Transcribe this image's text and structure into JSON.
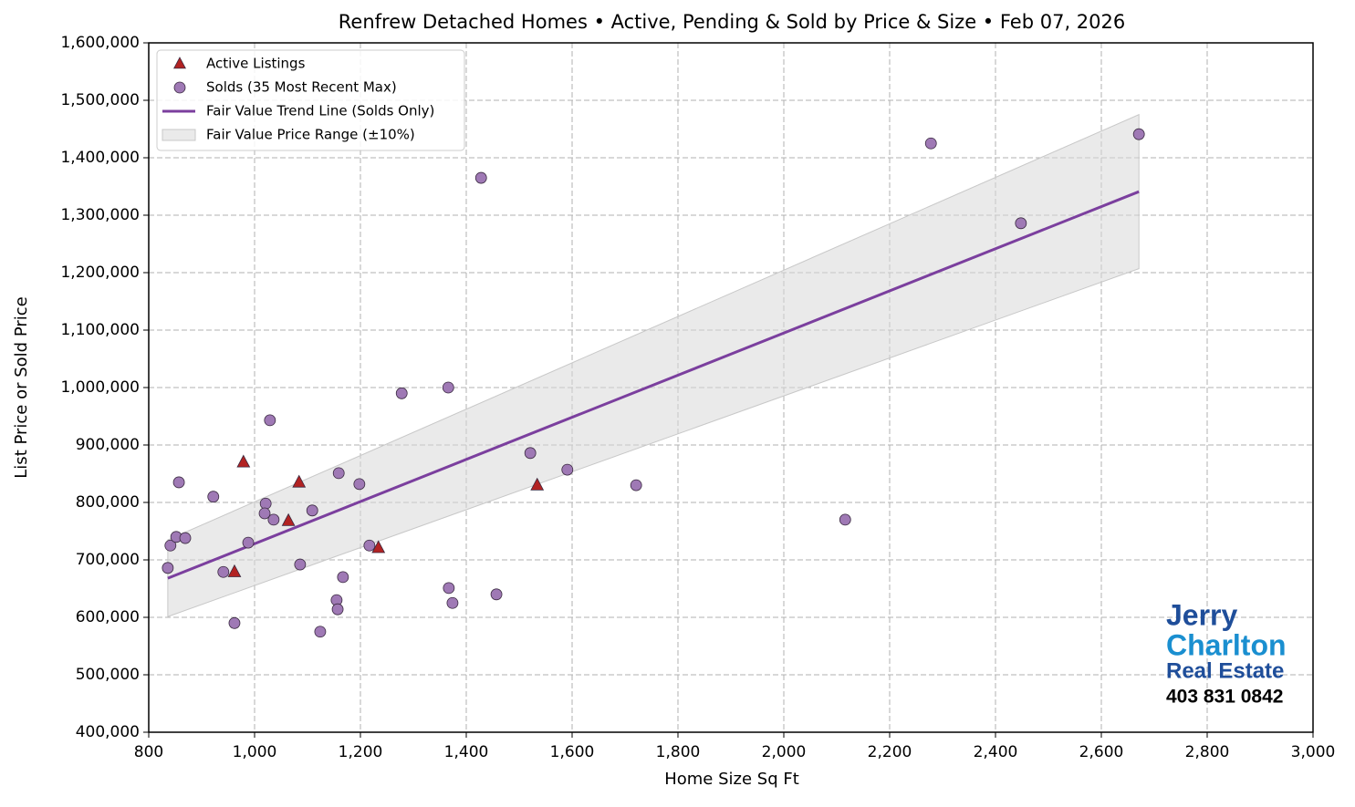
{
  "chart_data": {
    "type": "scatter",
    "title": "Renfrew Detached Homes • Active, Pending & Sold by Price & Size • Feb 07, 2026",
    "x_label": "Home Size Sq Ft",
    "y_label": "List Price or Sold Price",
    "xlim": [
      800,
      3000
    ],
    "ylim": [
      400000,
      1600000
    ],
    "xticks": [
      800,
      {
        "value": 1000,
        "label": "1,000"
      },
      {
        "value": 1200,
        "label": "1,200"
      },
      {
        "value": 1400,
        "label": "1,400"
      },
      {
        "value": 1600,
        "label": "1,600"
      },
      {
        "value": 1800,
        "label": "1,800"
      },
      {
        "value": 2000,
        "label": "2,000"
      },
      {
        "value": 2200,
        "label": "2,200"
      },
      {
        "value": 2400,
        "label": "2,400"
      },
      {
        "value": 2600,
        "label": "2,600"
      },
      {
        "value": 2800,
        "label": "2,800"
      },
      {
        "value": 3000,
        "label": "3,000"
      }
    ],
    "yticks": [
      {
        "value": 400000,
        "label": "400,000"
      },
      {
        "value": 500000,
        "label": "500,000"
      },
      {
        "value": 600000,
        "label": "600,000"
      },
      {
        "value": 700000,
        "label": "700,000"
      },
      {
        "value": 800000,
        "label": "800,000"
      },
      {
        "value": 900000,
        "label": "900,000"
      },
      {
        "value": 1000000,
        "label": "1,000,000"
      },
      {
        "value": 1100000,
        "label": "1,100,000"
      },
      {
        "value": 1200000,
        "label": "1,200,000"
      },
      {
        "value": 1300000,
        "label": "1,300,000"
      },
      {
        "value": 1400000,
        "label": "1,400,000"
      },
      {
        "value": 1500000,
        "label": "1,500,000"
      },
      {
        "value": 1600000,
        "label": "1,600,000"
      }
    ],
    "grid": true,
    "legend": "upper left",
    "series": [
      {
        "name": "Active Listings",
        "kind": "points",
        "marker": "triangle",
        "color": "#b22222",
        "x": [
          979,
          1084,
          1064,
          962,
          1234,
          1534
        ],
        "values": [
          870000,
          835000,
          768000,
          679000,
          721000,
          830000
        ]
      },
      {
        "name": "Solds (35 Most Recent Max)",
        "kind": "points",
        "marker": "circle",
        "color": "#9f79b5",
        "x": [
          836,
          841,
          852,
          857,
          869,
          922,
          941,
          962,
          988,
          1021,
          1019,
          1029,
          1036,
          1086,
          1109,
          1124,
          1155,
          1157,
          1159,
          1167,
          1198,
          1217,
          1278,
          1366,
          1367,
          1374,
          1428,
          1457,
          1521,
          1591,
          1721,
          2116,
          2278,
          2448,
          2671
        ],
        "values": [
          686000,
          725000,
          740000,
          835000,
          738000,
          810000,
          679000,
          590000,
          730000,
          798000,
          781000,
          943000,
          770000,
          692000,
          786000,
          575000,
          630000,
          614000,
          851000,
          670000,
          832000,
          725000,
          990000,
          1000000,
          651000,
          625000,
          1365000,
          640000,
          886000,
          857000,
          830000,
          770000,
          1425000,
          1286000,
          1441000
        ]
      },
      {
        "name": "Fair Value Trend Line (Solds Only)",
        "kind": "line",
        "color": "#7b3f9e",
        "x": [
          836,
          2671
        ],
        "values": [
          668000,
          1341000
        ]
      },
      {
        "name": "Fair Value Price Range (±10%)",
        "kind": "band",
        "color": "#d9d9d9",
        "x": [
          836,
          2671
        ],
        "lower": [
          601200,
          1206900
        ],
        "upper": [
          734800,
          1475100
        ]
      }
    ]
  },
  "logo": {
    "line1": "Jerry",
    "line2": "Charlton",
    "line3": "Real Estate",
    "phone": "403 831 0842"
  }
}
